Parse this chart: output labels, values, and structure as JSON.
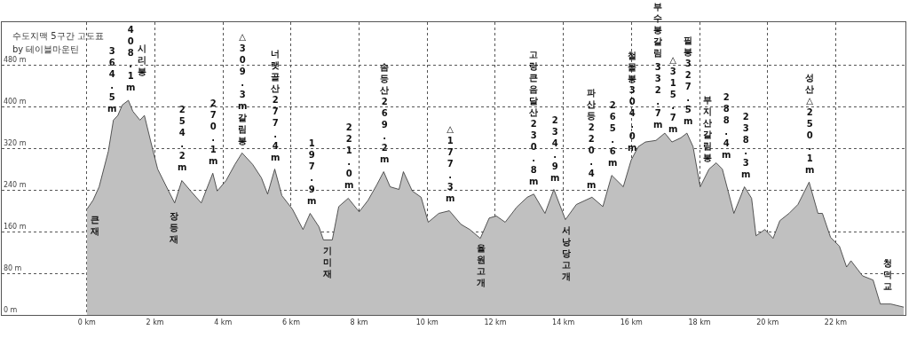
{
  "chart_data": {
    "type": "area",
    "title": "수도지맥 5구간 고도표",
    "subtitle": "by 테이블마운틴",
    "x": [
      0,
      0.18,
      0.36,
      0.63,
      0.78,
      0.91,
      1.04,
      1.22,
      1.35,
      1.56,
      1.69,
      1.88,
      2.08,
      2.4,
      2.58,
      2.79,
      3.05,
      3.36,
      3.7,
      3.83,
      4.09,
      4.35,
      4.56,
      4.87,
      5.13,
      5.31,
      5.52,
      5.73,
      6.04,
      6.35,
      6.56,
      6.82,
      6.95,
      7.21,
      7.4,
      7.68,
      8.0,
      8.26,
      8.52,
      8.72,
      8.91,
      9.17,
      9.3,
      9.56,
      9.82,
      10.03,
      10.34,
      10.65,
      10.99,
      11.25,
      11.56,
      11.82,
      12.03,
      12.29,
      12.63,
      12.94,
      13.13,
      13.46,
      13.72,
      14.06,
      14.38,
      14.84,
      15.16,
      15.42,
      15.76,
      15.99,
      16.2,
      16.41,
      16.72,
      16.98,
      17.19,
      17.45,
      17.63,
      17.81,
      18.02,
      18.28,
      18.49,
      18.67,
      19.01,
      19.32,
      19.53,
      19.66,
      19.92,
      20.16,
      20.36,
      20.63,
      20.89,
      21.22,
      21.48,
      21.61,
      21.85,
      22.11,
      22.32,
      22.45,
      22.79,
      23.1,
      23.31,
      23.62,
      24.0
    ],
    "values": [
      203,
      220,
      246,
      314,
      374,
      383,
      403,
      412,
      391,
      374,
      383,
      332,
      280,
      238,
      215,
      258,
      238,
      215,
      272,
      238,
      258,
      289,
      311,
      289,
      263,
      232,
      280,
      229,
      203,
      164,
      195,
      169,
      144,
      144,
      208,
      224,
      198,
      220,
      250,
      275,
      246,
      241,
      275,
      238,
      226,
      178,
      195,
      200,
      174,
      164,
      147,
      186,
      190,
      178,
      207,
      226,
      232,
      195,
      241,
      183,
      212,
      226,
      208,
      268,
      246,
      297,
      323,
      332,
      335,
      349,
      332,
      340,
      349,
      323,
      246,
      280,
      292,
      280,
      195,
      246,
      224,
      152,
      164,
      147,
      181,
      195,
      212,
      255,
      195,
      195,
      149,
      132,
      92,
      104,
      75,
      67,
      21,
      21,
      15
    ],
    "color": "#c0c0c0",
    "xlim": [
      -2.5,
      24.05
    ],
    "ylim": [
      0,
      562
    ],
    "xticks": [
      {
        "value": 0,
        "label": "0 km"
      },
      {
        "value": 2,
        "label": "2 km"
      },
      {
        "value": 4,
        "label": "4 km"
      },
      {
        "value": 6,
        "label": "6 km"
      },
      {
        "value": 8,
        "label": "8 km"
      },
      {
        "value": 10,
        "label": "10 km"
      },
      {
        "value": 12,
        "label": "12 km"
      },
      {
        "value": 14,
        "label": "14 km"
      },
      {
        "value": 16,
        "label": "16 km"
      },
      {
        "value": 18,
        "label": "18 km"
      },
      {
        "value": 20,
        "label": "20 km"
      },
      {
        "value": 22,
        "label": "22 km"
      }
    ],
    "yticks": [
      {
        "value": 0,
        "label": "0 m"
      },
      {
        "value": 80,
        "label": "80 m"
      },
      {
        "value": 160,
        "label": "160 m"
      },
      {
        "value": 240,
        "label": "240 m"
      },
      {
        "value": 320,
        "label": "320 m"
      },
      {
        "value": 400,
        "label": "400 m"
      },
      {
        "value": 480,
        "label": "480 m"
      }
    ],
    "grid": true,
    "annotations": [
      "큰재",
      "364.5m",
      "408.1m",
      "시리봉",
      "254.2m",
      "장등재",
      "270.1m",
      "△309.3m갈림봉",
      "너랫골산277.4m",
      "197.9m",
      "기미재",
      "221.0m",
      "솜등산269.2m",
      "△177.3m",
      "율원고개",
      "고랑큰음달산230.8m",
      "234.9m",
      "서낭당고개",
      "파산등220.4m",
      "265.6m",
      "철물봉304.0m",
      "부수봉갈림",
      "332.7m",
      "△315.7m",
      "필봉327.5m",
      "부지산갈림봉",
      "288.4m",
      "238.3m",
      "성산△250.1m",
      "청덕교"
    ]
  }
}
